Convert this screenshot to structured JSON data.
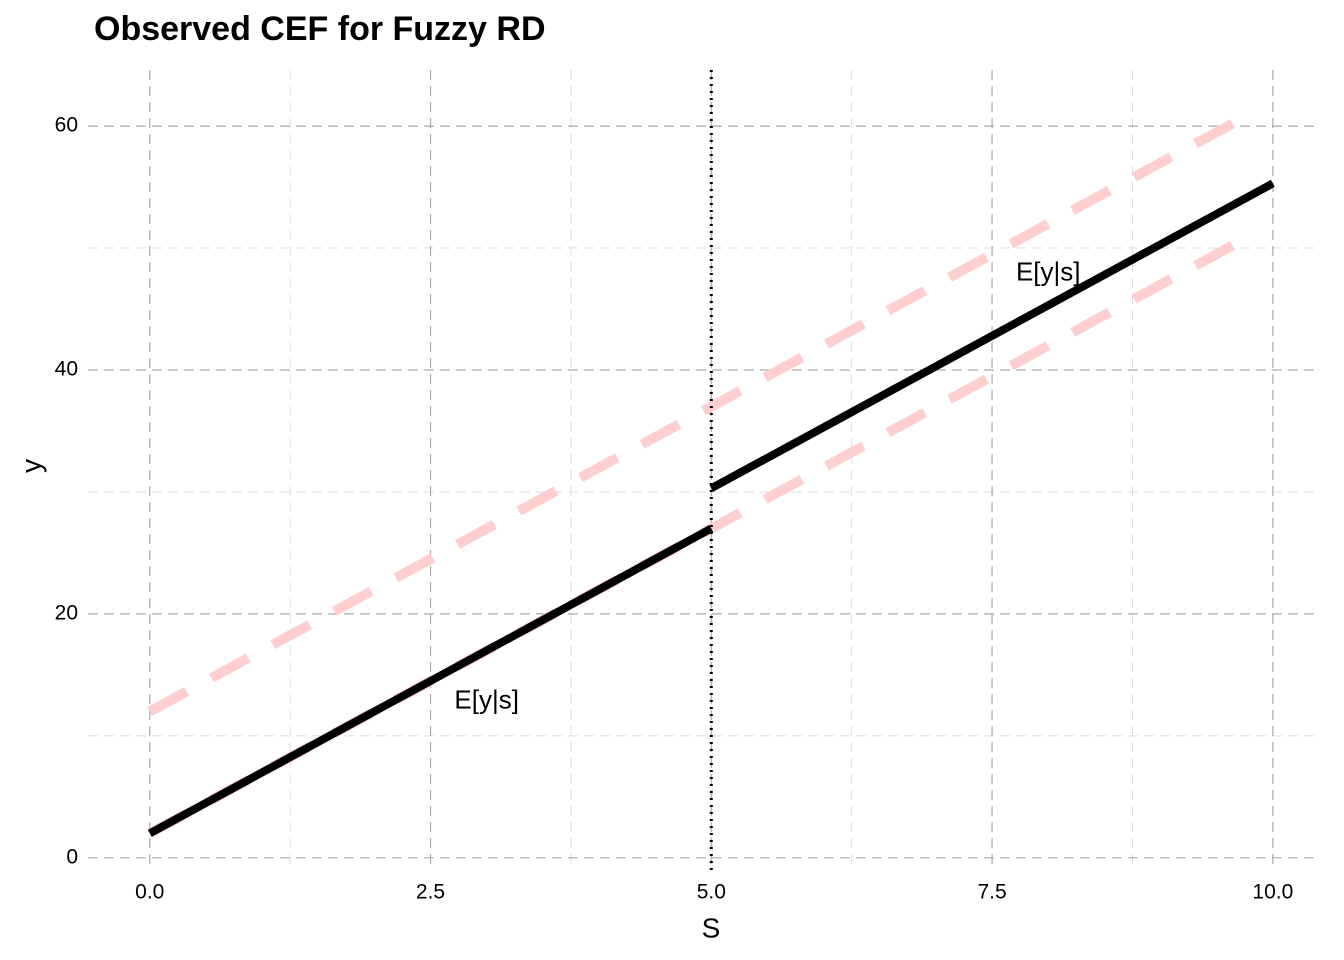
{
  "chart_data": {
    "type": "line",
    "title": "Observed CEF for Fuzzy RD",
    "xlabel": "S",
    "ylabel": "y",
    "xlim": [
      -0.55,
      10.42
    ],
    "ylim": [
      -1,
      64.6
    ],
    "xticks": [
      {
        "value": 0,
        "label": "0.0"
      },
      {
        "value": 2.5,
        "label": "2.5"
      },
      {
        "value": 5,
        "label": "5.0"
      },
      {
        "value": 7.5,
        "label": "7.5"
      },
      {
        "value": 10,
        "label": "10.0"
      }
    ],
    "yticks": [
      0,
      20,
      40,
      60
    ],
    "xminor": [
      1.25,
      3.75,
      6.25,
      8.75
    ],
    "yminor": [
      10,
      30,
      50
    ],
    "grid": true,
    "series": [
      {
        "x": [
          0,
          9.8
        ],
        "values": [
          12,
          61
        ],
        "color": "#ffcccc",
        "dashed": true
      },
      {
        "x": [
          0,
          9.8
        ],
        "values": [
          2,
          51
        ],
        "color": "#ffcccc",
        "dashed": true
      },
      {
        "x": [
          0,
          5
        ],
        "values": [
          2,
          27
        ],
        "color": "#000000",
        "dashed": false
      },
      {
        "x": [
          5,
          10
        ],
        "values": [
          30.3,
          55.3
        ],
        "color": "#000000",
        "dashed": false
      }
    ],
    "vline": {
      "x": 5
    },
    "annotations": [
      {
        "text": "E[y|s]",
        "x": 3.0,
        "y": 12.8
      },
      {
        "text": "E[y|s]",
        "x": 8.0,
        "y": 47.9
      }
    ]
  }
}
